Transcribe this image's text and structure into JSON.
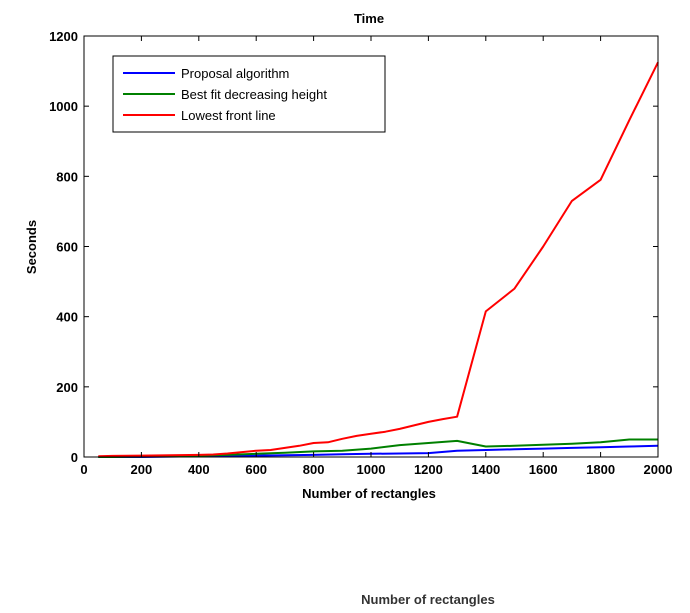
{
  "chart_data": {
    "type": "line",
    "title": "Time",
    "xlabel": "Number of rectangles",
    "ylabel": "Seconds",
    "xlim": [
      0,
      2000
    ],
    "ylim": [
      0,
      1200
    ],
    "xticks": [
      0,
      200,
      400,
      600,
      800,
      1000,
      1200,
      1400,
      1600,
      1800,
      2000
    ],
    "yticks": [
      0,
      200,
      400,
      600,
      800,
      1000,
      1200
    ],
    "grid": false,
    "legend_position": "top-left",
    "series": [
      {
        "name": "Proposal algorithm",
        "color": "#0000ff",
        "x": [
          50,
          100,
          200,
          300,
          400,
          500,
          600,
          700,
          800,
          900,
          1000,
          1100,
          1200,
          1300,
          1400,
          1500,
          1600,
          1700,
          1800,
          1900,
          2000
        ],
        "y": [
          0,
          0,
          0,
          1,
          2,
          3,
          4,
          5,
          6,
          8,
          9,
          10,
          11,
          18,
          20,
          22,
          24,
          26,
          28,
          30,
          32
        ]
      },
      {
        "name": "Best fit decreasing height",
        "color": "#008000",
        "x": [
          50,
          100,
          200,
          300,
          400,
          500,
          600,
          700,
          800,
          900,
          1000,
          1100,
          1200,
          1300,
          1400,
          1500,
          1600,
          1700,
          1800,
          1900,
          2000
        ],
        "y": [
          0,
          0,
          1,
          2,
          4,
          6,
          9,
          12,
          16,
          18,
          24,
          34,
          40,
          46,
          30,
          32,
          35,
          38,
          42,
          50,
          50
        ]
      },
      {
        "name": "Lowest front line",
        "color": "#ff0000",
        "x": [
          50,
          100,
          200,
          300,
          400,
          450,
          500,
          550,
          600,
          650,
          700,
          750,
          800,
          850,
          900,
          950,
          1000,
          1050,
          1100,
          1150,
          1200,
          1250,
          1300,
          1400,
          1500,
          1600,
          1700,
          1800,
          1900,
          2000
        ],
        "y": [
          2,
          3,
          4,
          5,
          6,
          7,
          10,
          14,
          18,
          20,
          26,
          32,
          40,
          42,
          52,
          60,
          66,
          72,
          80,
          90,
          100,
          108,
          115,
          415,
          480,
          600,
          730,
          790,
          960,
          1125
        ]
      }
    ],
    "extra_label": "Number of rectangles"
  }
}
